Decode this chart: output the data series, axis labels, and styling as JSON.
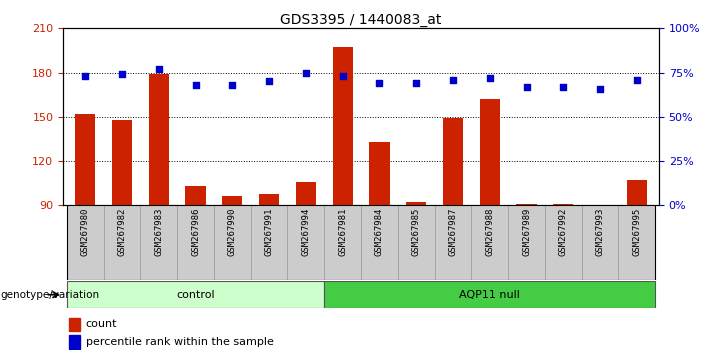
{
  "title": "GDS3395 / 1440083_at",
  "samples": [
    "GSM267980",
    "GSM267982",
    "GSM267983",
    "GSM267986",
    "GSM267990",
    "GSM267991",
    "GSM267994",
    "GSM267981",
    "GSM267984",
    "GSM267985",
    "GSM267987",
    "GSM267988",
    "GSM267989",
    "GSM267992",
    "GSM267993",
    "GSM267995"
  ],
  "counts": [
    152,
    148,
    179,
    103,
    96,
    98,
    106,
    197,
    133,
    92,
    149,
    162,
    91,
    91,
    90,
    107
  ],
  "percentile": [
    73,
    74,
    77,
    68,
    68,
    70,
    75,
    73,
    69,
    69,
    71,
    72,
    67,
    67,
    66,
    71
  ],
  "control_count": 7,
  "control_label": "control",
  "aqp_label": "AQP11 null",
  "ylim_left": [
    90,
    210
  ],
  "ylim_right": [
    0,
    100
  ],
  "yticks_left": [
    90,
    120,
    150,
    180,
    210
  ],
  "yticks_right": [
    0,
    25,
    50,
    75,
    100
  ],
  "bar_color": "#cc2200",
  "dot_color": "#0000cc",
  "control_bg": "#ccffcc",
  "aqp_bg": "#44cc44",
  "xlabel_bg": "#cccccc",
  "legend_count_color": "#cc2200",
  "legend_dot_color": "#0000cc",
  "genotype_label": "genotype/variation"
}
